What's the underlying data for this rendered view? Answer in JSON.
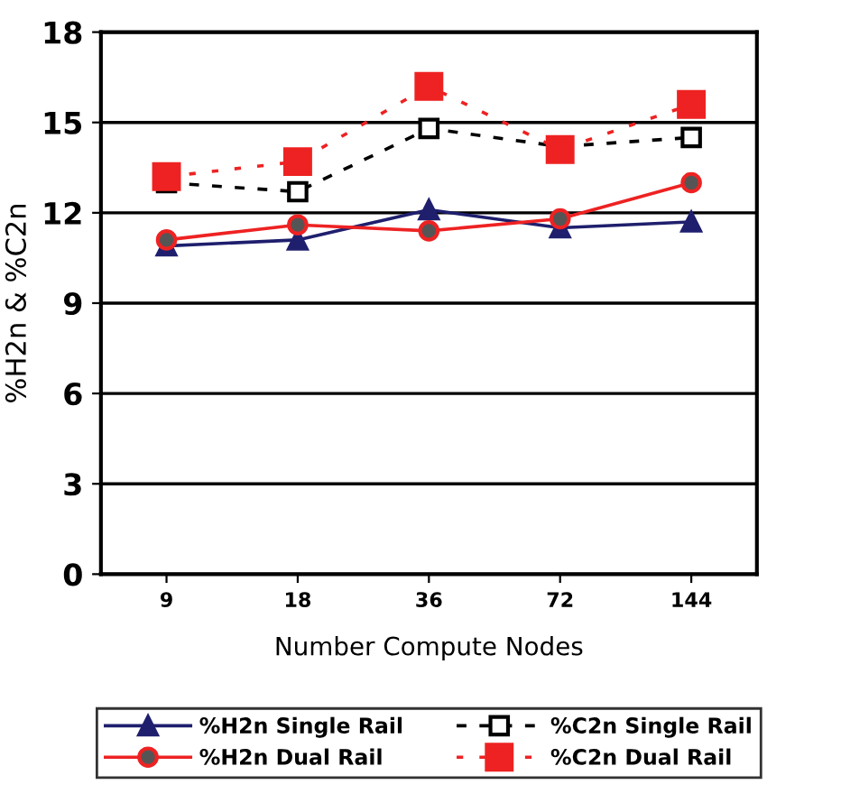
{
  "chart_data": {
    "type": "line",
    "xlabel": "Number Compute Nodes",
    "ylabel": "%H2n & %C2n",
    "categories": [
      "9",
      "18",
      "36",
      "72",
      "144"
    ],
    "series": [
      {
        "name": "%H2n Single Rail",
        "color": "#1f1f6e",
        "values": [
          10.9,
          11.1,
          12.1,
          11.5,
          11.7
        ],
        "marker": "triangle",
        "line_style": "solid"
      },
      {
        "name": "%H2n Dual Rail",
        "color": "#ee2222",
        "values": [
          11.1,
          11.6,
          11.4,
          11.8,
          13.0
        ],
        "marker": "circle",
        "line_style": "solid"
      },
      {
        "name": "%C2n Single Rail",
        "color": "#000000",
        "values": [
          13.0,
          12.7,
          14.8,
          14.2,
          14.5
        ],
        "marker": "square",
        "line_style": "dashed"
      },
      {
        "name": "%C2n Dual Rail",
        "color": "#ee2222",
        "values": [
          13.2,
          13.7,
          16.2,
          14.1,
          15.6
        ],
        "marker": "square",
        "line_style": "dotted"
      }
    ],
    "ylim": [
      0,
      18
    ],
    "yticks": [
      0,
      3,
      6,
      9,
      12,
      15,
      18
    ],
    "grid": "y",
    "legend": "bottom"
  }
}
